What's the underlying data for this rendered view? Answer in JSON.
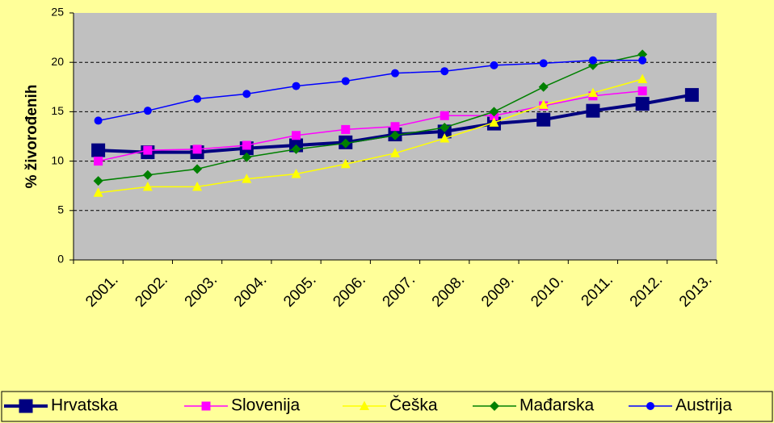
{
  "chart_data": {
    "type": "line",
    "y_label": "% živorođenih",
    "categories": [
      "2001.",
      "2002.",
      "2003.",
      "2004.",
      "2005.",
      "2006.",
      "2007.",
      "2008.",
      "2009.",
      "2010.",
      "2011.",
      "2012.",
      "2013."
    ],
    "series": [
      {
        "name": "Hrvatska",
        "color": "#000080",
        "marker": "square",
        "values": [
          11.1,
          10.9,
          10.9,
          11.3,
          11.6,
          11.9,
          12.7,
          13.0,
          13.8,
          14.2,
          15.1,
          15.8,
          16.7
        ]
      },
      {
        "name": "Slovenija",
        "color": "#FF00FF",
        "marker": "square",
        "values": [
          10.0,
          11.1,
          11.2,
          11.6,
          12.6,
          13.2,
          13.5,
          14.6,
          14.6,
          15.6,
          16.6,
          17.1,
          null
        ]
      },
      {
        "name": "Češka",
        "color": "#FFFF00",
        "marker": "triangle",
        "values": [
          6.8,
          7.4,
          7.4,
          8.2,
          8.7,
          9.7,
          10.8,
          12.3,
          13.9,
          15.7,
          16.9,
          18.3,
          null
        ]
      },
      {
        "name": "Mađarska",
        "color": "#008000",
        "marker": "diamond",
        "values": [
          8.0,
          8.6,
          9.2,
          10.4,
          11.2,
          11.8,
          12.6,
          13.4,
          15.0,
          17.5,
          19.7,
          20.8,
          null
        ]
      },
      {
        "name": "Austrija",
        "color": "#0000FF",
        "marker": "circle",
        "values": [
          14.1,
          15.1,
          16.3,
          16.8,
          17.6,
          18.1,
          18.9,
          19.1,
          19.7,
          19.9,
          20.2,
          20.2,
          null
        ]
      }
    ],
    "ylim": [
      0,
      25
    ],
    "yticks": [
      0,
      5,
      10,
      15,
      20,
      25
    ],
    "grid": true,
    "legend": "bottom"
  }
}
